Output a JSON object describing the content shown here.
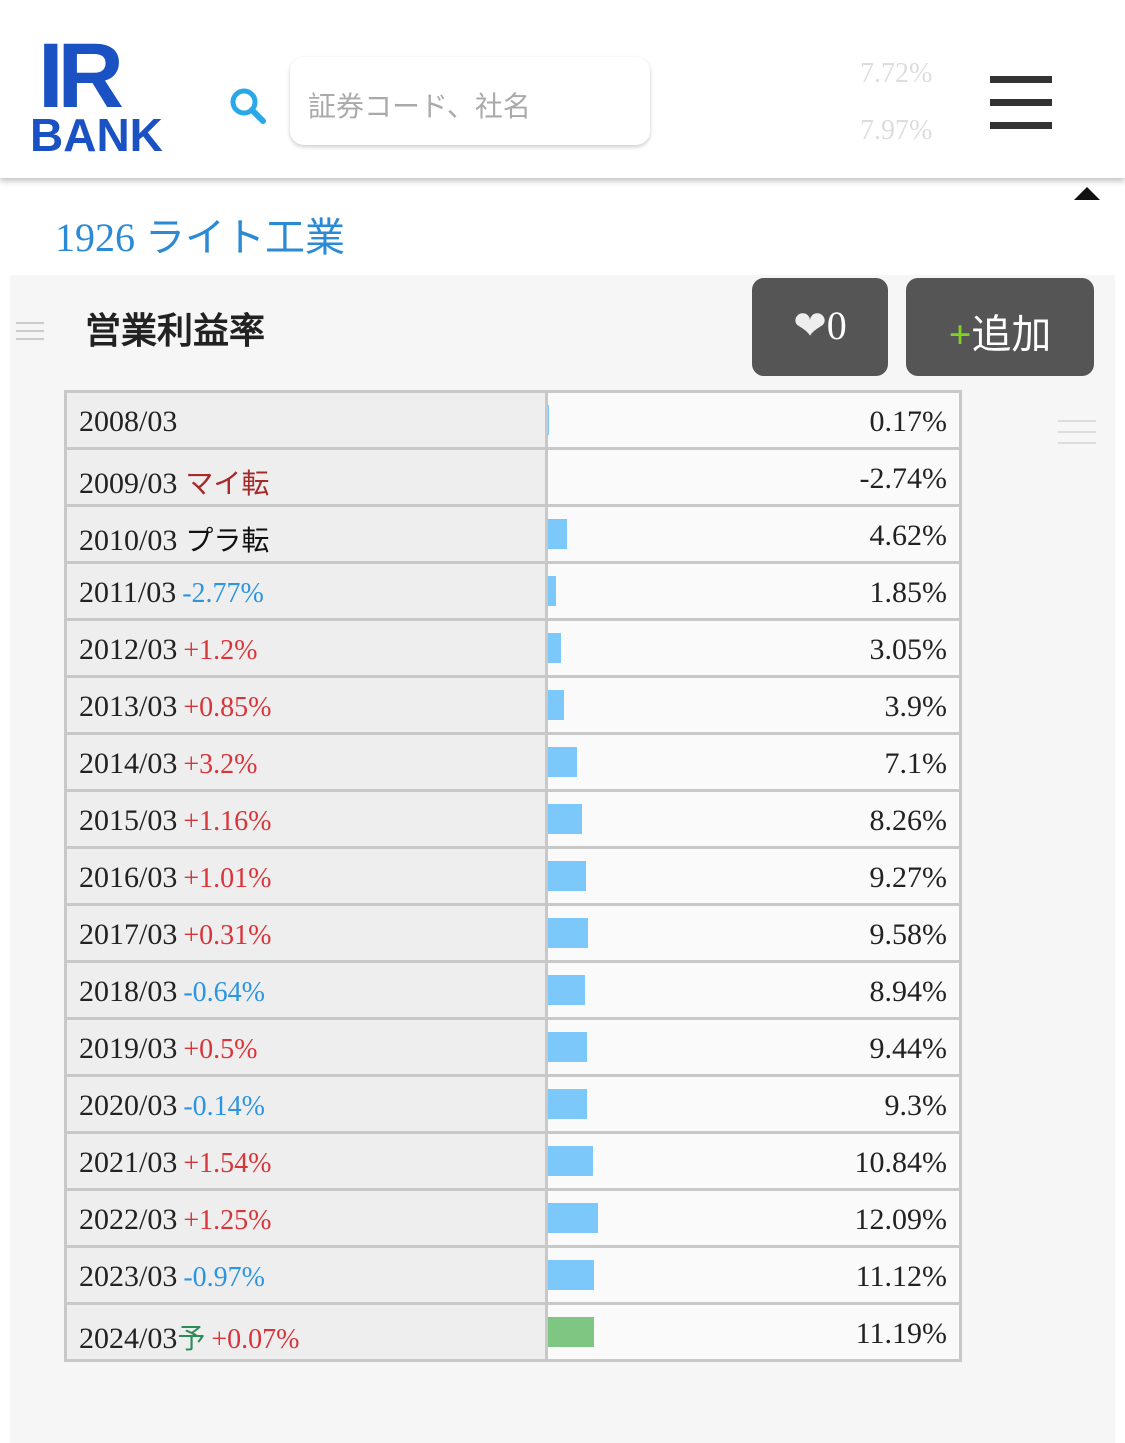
{
  "header": {
    "logo_top": "IR",
    "logo_bottom": "BANK",
    "search_placeholder": "証券コード、社名",
    "ghost_values": [
      "7.72%",
      "7.97%"
    ]
  },
  "company": {
    "title": "1926 ライト工業"
  },
  "section": {
    "title": "営業利益率",
    "like_count": "0",
    "add_button": "追加"
  },
  "table": {
    "rows": [
      {
        "period": "2008/03",
        "value": "0.17%"
      },
      {
        "period": "2009/03",
        "tag": "マイ転",
        "value": "-2.74%"
      },
      {
        "period": "2010/03",
        "tag": "プラ転",
        "value": "4.62%"
      },
      {
        "period": "2011/03",
        "change": "-2.77%",
        "value": "1.85%"
      },
      {
        "period": "2012/03",
        "change": "+1.2%",
        "value": "3.05%"
      },
      {
        "period": "2013/03",
        "change": "+0.85%",
        "value": "3.9%"
      },
      {
        "period": "2014/03",
        "change": "+3.2%",
        "value": "7.1%"
      },
      {
        "period": "2015/03",
        "change": "+1.16%",
        "value": "8.26%"
      },
      {
        "period": "2016/03",
        "change": "+1.01%",
        "value": "9.27%"
      },
      {
        "period": "2017/03",
        "change": "+0.31%",
        "value": "9.58%"
      },
      {
        "period": "2018/03",
        "change": "-0.64%",
        "value": "8.94%"
      },
      {
        "period": "2019/03",
        "change": "+0.5%",
        "value": "9.44%"
      },
      {
        "period": "2020/03",
        "change": "-0.14%",
        "value": "9.3%"
      },
      {
        "period": "2021/03",
        "change": "+1.54%",
        "value": "10.84%"
      },
      {
        "period": "2022/03",
        "change": "+1.25%",
        "value": "12.09%"
      },
      {
        "period": "2023/03",
        "change": "-0.97%",
        "value": "11.12%"
      },
      {
        "period": "2024/03",
        "forecast": "予",
        "change": "+0.07%",
        "value": "11.19%"
      }
    ]
  }
}
